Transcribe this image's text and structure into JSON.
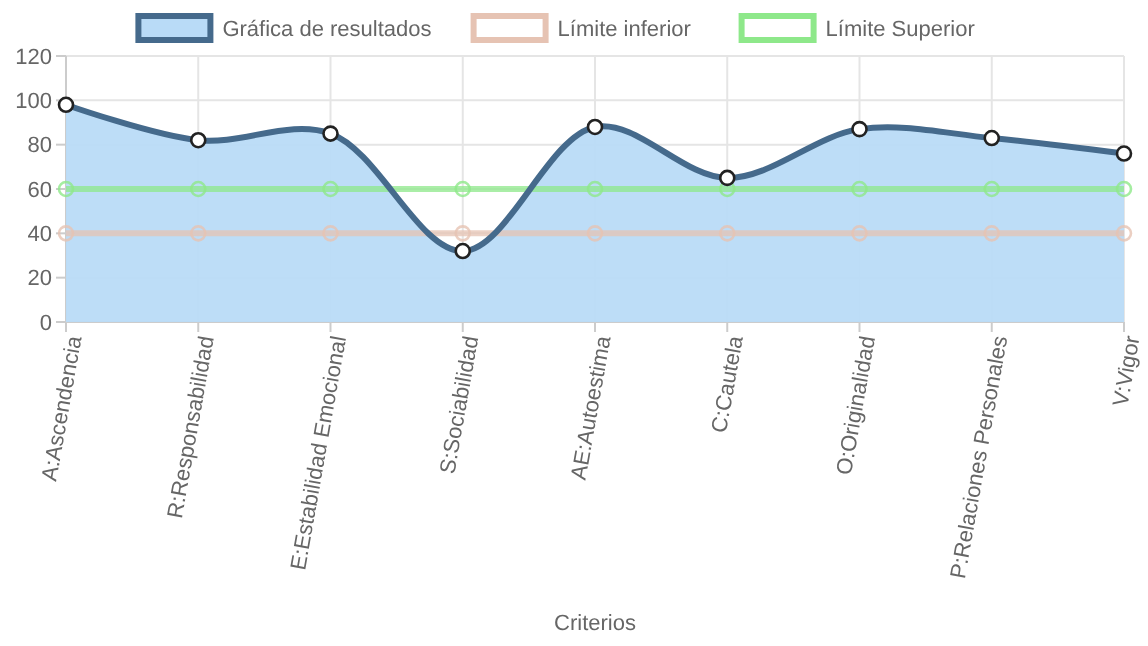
{
  "chart_data": {
    "type": "area",
    "xlabel": "Criterios",
    "categories": [
      "A:Ascendencia",
      "R:Responsabilidad",
      "E:Estabilidad Emocional",
      "S:Sociabilidad",
      "AE:Autoestima",
      "C:Cautela",
      "O:Originalidad",
      "P:Relaciones Personales",
      "V:Vigor"
    ],
    "series": [
      {
        "name": "Gráfica de resultados",
        "color": "#456a8c",
        "values": [
          98,
          82,
          85,
          32,
          88,
          65,
          87,
          83,
          76
        ]
      },
      {
        "name": "Límite inferior",
        "type": "line",
        "color": "#e6c3b3",
        "values": [
          40,
          40,
          40,
          40,
          40,
          40,
          40,
          40,
          40
        ]
      },
      {
        "name": "Límite Superior",
        "type": "line",
        "color": "#8ee88a",
        "values": [
          60,
          60,
          60,
          60,
          60,
          60,
          60,
          60,
          60
        ]
      }
    ],
    "ylim": [
      0,
      120
    ],
    "yticks": [
      0,
      20,
      40,
      60,
      80,
      100,
      120
    ],
    "grid": true,
    "legend": "top",
    "marker": "circle"
  }
}
